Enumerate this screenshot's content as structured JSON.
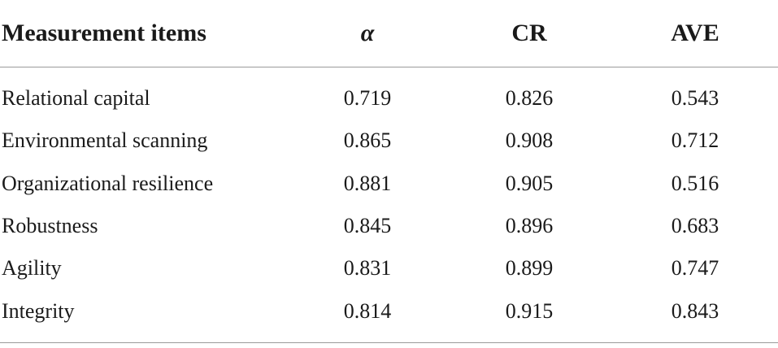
{
  "table": {
    "headers": {
      "label": "Measurement items",
      "alpha": "α",
      "cr": "CR",
      "ave": "AVE"
    },
    "rows": [
      {
        "label": "Relational capital",
        "alpha": "0.719",
        "cr": "0.826",
        "ave": "0.543"
      },
      {
        "label": "Environmental scanning",
        "alpha": "0.865",
        "cr": "0.908",
        "ave": "0.712"
      },
      {
        "label": "Organizational resilience",
        "alpha": "0.881",
        "cr": "0.905",
        "ave": "0.516"
      },
      {
        "label": "Robustness",
        "alpha": "0.845",
        "cr": "0.896",
        "ave": "0.683"
      },
      {
        "label": "Agility",
        "alpha": "0.831",
        "cr": "0.899",
        "ave": "0.747"
      },
      {
        "label": "Integrity",
        "alpha": "0.814",
        "cr": "0.915",
        "ave": "0.843"
      }
    ]
  }
}
